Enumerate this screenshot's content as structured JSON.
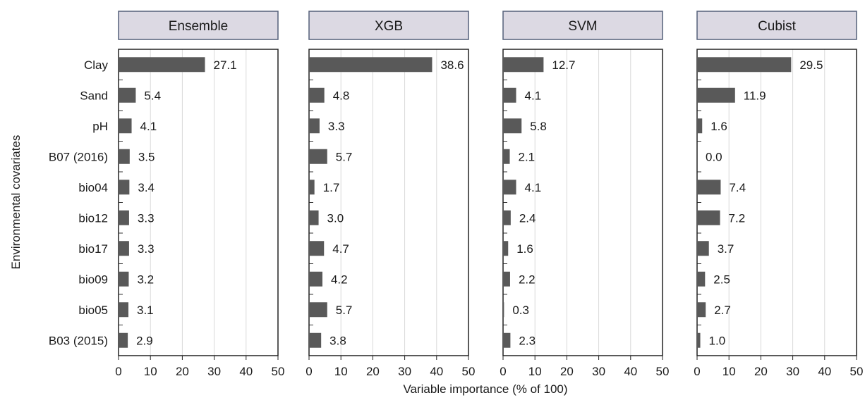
{
  "chart_data": {
    "type": "bar",
    "orientation": "horizontal",
    "xlabel": "Variable importance (% of 100)",
    "ylabel": "Environmental covariates",
    "xlim": [
      0,
      50
    ],
    "xticks": [
      0,
      10,
      20,
      30,
      40,
      50
    ],
    "grid": true,
    "bar_color": "#595959",
    "panel_header_color": "#dcd9e3",
    "categories": [
      "Clay",
      "Sand",
      "pH",
      "B07 (2016)",
      "bio04",
      "bio12",
      "bio17",
      "bio09",
      "bio05",
      "B03 (2015)"
    ],
    "panels": [
      {
        "title": "Ensemble",
        "values": [
          27.1,
          5.4,
          4.1,
          3.5,
          3.4,
          3.3,
          3.3,
          3.2,
          3.1,
          2.9
        ],
        "labels": [
          "27.1",
          "5.4",
          "4.1",
          "3.5",
          "3.4",
          "3.3",
          "3.3",
          "3.2",
          "3.1",
          "2.9"
        ]
      },
      {
        "title": "XGB",
        "values": [
          38.6,
          4.8,
          3.3,
          5.7,
          1.7,
          3.0,
          4.7,
          4.2,
          5.7,
          3.8
        ],
        "labels": [
          "38.6",
          "4.8",
          "3.3",
          "5.7",
          "1.7",
          "3.0",
          "4.7",
          "4.2",
          "5.7",
          "3.8"
        ]
      },
      {
        "title": "SVM",
        "values": [
          12.7,
          4.1,
          5.8,
          2.1,
          4.1,
          2.4,
          1.6,
          2.2,
          0.3,
          2.3
        ],
        "labels": [
          "12.7",
          "4.1",
          "5.8",
          "2.1",
          "4.1",
          "2.4",
          "1.6",
          "2.2",
          "0.3",
          "2.3"
        ]
      },
      {
        "title": "Cubist",
        "values": [
          29.5,
          11.9,
          1.6,
          0.0,
          7.4,
          7.2,
          3.7,
          2.5,
          2.7,
          1.0
        ],
        "labels": [
          "29.5",
          "11.9",
          "1.6",
          "0.0",
          "7.4",
          "7.2",
          "3.7",
          "2.5",
          "2.7",
          "1.0"
        ]
      }
    ]
  }
}
